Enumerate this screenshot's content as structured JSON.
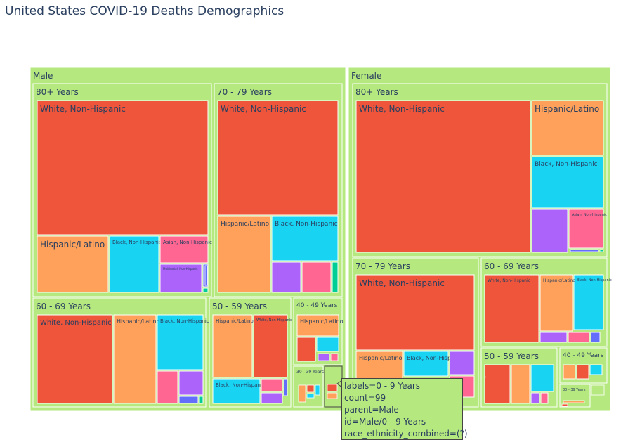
{
  "page": {
    "title": "United States COVID-19 Deaths Demographics"
  },
  "colors": {
    "container": "#b6e880",
    "White, Non-Hispanic": "#ef553b",
    "Hispanic/Latino": "#ffa15a",
    "Black, Non-Hispanic": "#19d3f3",
    "Asian, Non-Hispanic": "#ff6692",
    "Multiracial, Non-Hispanic": "#ab63fa",
    "American Indian/Alaska Native, Non-Hispanic": "#636efa",
    "Native Hawaiian/Pacific Islander, Non-Hispanic": "#00cc96",
    "border": "#ffffff"
  },
  "chart_data": {
    "type": "treemap",
    "title": "United States COVID-19 Deaths Demographics",
    "path": [
      "sex",
      "age_group",
      "race_ethnicity_combined"
    ],
    "nodes": [
      {
        "id": "Male",
        "label": "Male",
        "parent": ""
      },
      {
        "id": "Female",
        "label": "Female",
        "parent": ""
      },
      {
        "id": "Male/80+ Years",
        "label": "80+ Years",
        "parent": "Male"
      },
      {
        "id": "Male/80+ Years/White, Non-Hispanic",
        "label": "White, Non-Hispanic",
        "parent": "Male/80+ Years"
      },
      {
        "id": "Male/80+ Years/Hispanic/Latino",
        "label": "Hispanic/Latino",
        "parent": "Male/80+ Years"
      },
      {
        "id": "Male/80+ Years/Black, Non-Hispanic",
        "label": "Black, Non-Hispanic",
        "parent": "Male/80+ Years"
      },
      {
        "id": "Male/80+ Years/Asian, Non-Hispanic",
        "label": "Asian, Non-Hispanic",
        "parent": "Male/80+ Years"
      },
      {
        "id": "Male/80+ Years/Multiracial, Non-Hispanic",
        "label": "Multiracial, Non-Hispanic",
        "parent": "Male/80+ Years"
      },
      {
        "id": "Male/80+ Years/American Indian/Alaska Native, Non-Hispanic",
        "label": "",
        "parent": "Male/80+ Years"
      },
      {
        "id": "Male/80+ Years/Native Hawaiian/Pacific Islander, Non-Hispanic",
        "label": "",
        "parent": "Male/80+ Years"
      },
      {
        "id": "Male/70 - 79 Years",
        "label": "70 - 79 Years",
        "parent": "Male"
      },
      {
        "id": "Male/70 - 79 Years/White, Non-Hispanic",
        "label": "White, Non-Hispanic",
        "parent": "Male/70 - 79 Years"
      },
      {
        "id": "Male/70 - 79 Years/Hispanic/Latino",
        "label": "Hispanic/Latino",
        "parent": "Male/70 - 79 Years"
      },
      {
        "id": "Male/70 - 79 Years/Black, Non-Hispanic",
        "label": "Black, Non-Hispanic",
        "parent": "Male/70 - 79 Years"
      },
      {
        "id": "Male/70 - 79 Years/Multiracial, Non-Hispanic",
        "label": "",
        "parent": "Male/70 - 79 Years"
      },
      {
        "id": "Male/70 - 79 Years/Asian, Non-Hispanic",
        "label": "",
        "parent": "Male/70 - 79 Years"
      },
      {
        "id": "Male/70 - 79 Years/Native Hawaiian/Pacific Islander, Non-Hispanic",
        "label": "",
        "parent": "Male/70 - 79 Years"
      },
      {
        "id": "Male/60 - 69 Years",
        "label": "60 - 69 Years",
        "parent": "Male"
      },
      {
        "id": "Male/60 - 69 Years/White, Non-Hispanic",
        "label": "White, Non-Hispanic",
        "parent": "Male/60 - 69 Years"
      },
      {
        "id": "Male/60 - 69 Years/Hispanic/Latino",
        "label": "Hispanic/Latino",
        "parent": "Male/60 - 69 Years"
      },
      {
        "id": "Male/60 - 69 Years/Black, Non-Hispanic",
        "label": "Black, Non-Hispanic",
        "parent": "Male/60 - 69 Years"
      },
      {
        "id": "Male/60 - 69 Years/Asian, Non-Hispanic",
        "label": "",
        "parent": "Male/60 - 69 Years"
      },
      {
        "id": "Male/60 - 69 Years/Multiracial, Non-Hispanic",
        "label": "",
        "parent": "Male/60 - 69 Years"
      },
      {
        "id": "Male/60 - 69 Years/American Indian/Alaska Native, Non-Hispanic",
        "label": "",
        "parent": "Male/60 - 69 Years"
      },
      {
        "id": "Male/60 - 69 Years/Native Hawaiian/Pacific Islander, Non-Hispanic",
        "label": "",
        "parent": "Male/60 - 69 Years"
      },
      {
        "id": "Male/50 - 59 Years",
        "label": "50 - 59 Years",
        "parent": "Male"
      },
      {
        "id": "Male/50 - 59 Years/Hispanic/Latino",
        "label": "Hispanic/Latino",
        "parent": "Male/50 - 59 Years"
      },
      {
        "id": "Male/50 - 59 Years/White, Non-Hispanic",
        "label": "White, Non-Hispanic",
        "parent": "Male/50 - 59 Years"
      },
      {
        "id": "Male/50 - 59 Years/Black, Non-Hispanic",
        "label": "Black, Non-Hispanic",
        "parent": "Male/50 - 59 Years"
      },
      {
        "id": "Male/50 - 59 Years/Asian, Non-Hispanic",
        "label": "",
        "parent": "Male/50 - 59 Years"
      },
      {
        "id": "Male/50 - 59 Years/Multiracial, Non-Hispanic",
        "label": "",
        "parent": "Male/50 - 59 Years"
      },
      {
        "id": "Male/50 - 59 Years/American Indian/Alaska Native, Non-Hispanic",
        "label": "",
        "parent": "Male/50 - 59 Years"
      },
      {
        "id": "Male/40 - 49 Years",
        "label": "40 - 49 Years",
        "parent": "Male"
      },
      {
        "id": "Male/40 - 49 Years/Hispanic/Latino",
        "label": "Hispanic/Latino",
        "parent": "Male/40 - 49 Years"
      },
      {
        "id": "Male/40 - 49 Years/White, Non-Hispanic",
        "label": "",
        "parent": "Male/40 - 49 Years"
      },
      {
        "id": "Male/40 - 49 Years/Black, Non-Hispanic",
        "label": "",
        "parent": "Male/40 - 49 Years"
      },
      {
        "id": "Male/30 - 39 Years",
        "label": "30 - 39 Years",
        "parent": "Male"
      },
      {
        "id": "Male/0 - 9 Years",
        "label": "0 - 9 Years",
        "parent": "Male",
        "count": 99
      },
      {
        "id": "Female/80+ Years",
        "label": "80+ Years",
        "parent": "Female"
      },
      {
        "id": "Female/80+ Years/White, Non-Hispanic",
        "label": "White, Non-Hispanic",
        "parent": "Female/80+ Years"
      },
      {
        "id": "Female/80+ Years/Hispanic/Latino",
        "label": "Hispanic/Latino",
        "parent": "Female/80+ Years"
      },
      {
        "id": "Female/80+ Years/Black, Non-Hispanic",
        "label": "Black, Non-Hispanic",
        "parent": "Female/80+ Years"
      },
      {
        "id": "Female/80+ Years/Multiracial, Non-Hispanic",
        "label": "",
        "parent": "Female/80+ Years"
      },
      {
        "id": "Female/80+ Years/Asian, Non-Hispanic",
        "label": "Asian, Non-Hispanic",
        "parent": "Female/80+ Years"
      },
      {
        "id": "Female/70 - 79 Years",
        "label": "70 - 79 Years",
        "parent": "Female"
      },
      {
        "id": "Female/70 - 79 Years/White, Non-Hispanic",
        "label": "White, Non-Hispanic",
        "parent": "Female/70 - 79 Years"
      },
      {
        "id": "Female/70 - 79 Years/Hispanic/Latino",
        "label": "Hispanic/Latino",
        "parent": "Female/70 - 79 Years"
      },
      {
        "id": "Female/70 - 79 Years/Black, Non-Hispanic",
        "label": "Black, Non-Hispanic",
        "parent": "Female/70 - 79 Years"
      },
      {
        "id": "Female/70 - 79 Years/Multiracial, Non-Hispanic",
        "label": "",
        "parent": "Female/70 - 79 Years"
      },
      {
        "id": "Female/70 - 79 Years/Asian, Non-Hispanic",
        "label": "",
        "parent": "Female/70 - 79 Years"
      },
      {
        "id": "Female/60 - 69 Years",
        "label": "60 - 69 Years",
        "parent": "Female"
      },
      {
        "id": "Female/60 - 69 Years/White, Non-Hispanic",
        "label": "White, Non-Hispanic",
        "parent": "Female/60 - 69 Years"
      },
      {
        "id": "Female/60 - 69 Years/Hispanic/Latino",
        "label": "Hispanic/Latino",
        "parent": "Female/60 - 69 Years"
      },
      {
        "id": "Female/60 - 69 Years/Black, Non-Hispanic",
        "label": "Black, Non-Hispanic",
        "parent": "Female/60 - 69 Years"
      },
      {
        "id": "Female/60 - 69 Years/Multiracial, Non-Hispanic",
        "label": "",
        "parent": "Female/60 - 69 Years"
      },
      {
        "id": "Female/60 - 69 Years/Asian, Non-Hispanic",
        "label": "",
        "parent": "Female/60 - 69 Years"
      },
      {
        "id": "Female/60 - 69 Years/American Indian/Alaska Native, Non-Hispanic",
        "label": "",
        "parent": "Female/60 - 69 Years"
      },
      {
        "id": "Female/50 - 59 Years",
        "label": "50 - 59 Years",
        "parent": "Female"
      },
      {
        "id": "Female/50 - 59 Years/White, Non-Hispanic",
        "label": "",
        "parent": "Female/50 - 59 Years"
      },
      {
        "id": "Female/50 - 59 Years/Hispanic/Latino",
        "label": "",
        "parent": "Female/50 - 59 Years"
      },
      {
        "id": "Female/50 - 59 Years/Black, Non-Hispanic",
        "label": "",
        "parent": "Female/50 - 59 Years"
      },
      {
        "id": "Female/50 - 59 Years/Multiracial, Non-Hispanic",
        "label": "",
        "parent": "Female/50 - 59 Years"
      },
      {
        "id": "Female/50 - 59 Years/Asian, Non-Hispanic",
        "label": "",
        "parent": "Female/50 - 59 Years"
      },
      {
        "id": "Female/40 - 49 Years",
        "label": "40 - 49 Years",
        "parent": "Female"
      },
      {
        "id": "Female/40 - 49 Years/Hispanic/Latino",
        "label": "",
        "parent": "Female/40 - 49 Years"
      },
      {
        "id": "Female/40 - 49 Years/White, Non-Hispanic",
        "label": "",
        "parent": "Female/40 - 49 Years"
      },
      {
        "id": "Female/40 - 49 Years/Black, Non-Hispanic",
        "label": "",
        "parent": "Female/40 - 49 Years"
      },
      {
        "id": "Female/30 - 39 Years",
        "label": "30 - 39 Years",
        "parent": "Female"
      }
    ],
    "hover": {
      "lines": [
        "labels=0 - 9 Years",
        "count=99",
        "parent=Male",
        "id=Male/0 - 9 Years",
        "race_ethnicity_combined=(?)"
      ]
    }
  }
}
